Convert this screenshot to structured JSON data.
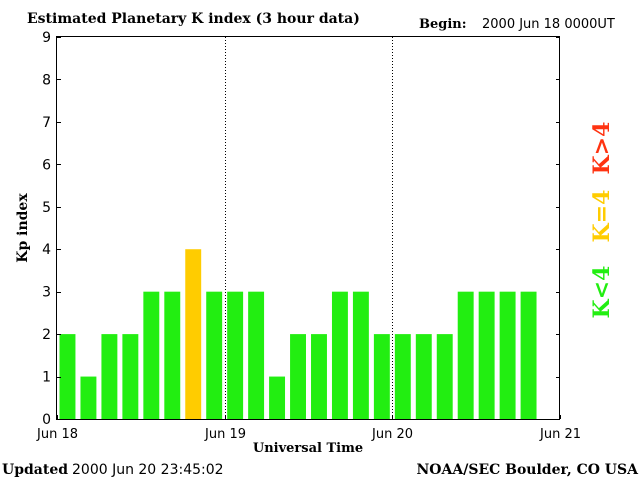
{
  "chart_data": {
    "type": "bar",
    "title": "Estimated Planetary K index (3 hour data)",
    "begin_label": "Begin:",
    "begin_value": "2000 Jun 18 0000UT",
    "xlabel": "Universal Time",
    "ylabel": "Kp index",
    "ylim": [
      0,
      9
    ],
    "yticks": [
      "0",
      "1",
      "2",
      "3",
      "4",
      "5",
      "6",
      "7",
      "8",
      "9"
    ],
    "x_range_hours": [
      0,
      72
    ],
    "bar_interval_hours": 3,
    "xticks": [
      {
        "label": "Jun 18",
        "hour": 0
      },
      {
        "label": "Jun 19",
        "hour": 24
      },
      {
        "label": "Jun 20",
        "hour": 48
      },
      {
        "label": "Jun 21",
        "hour": 72
      }
    ],
    "day_dividers_hours": [
      24,
      48
    ],
    "values": [
      2,
      1,
      2,
      2,
      3,
      3,
      4,
      3,
      3,
      3,
      1,
      2,
      2,
      3,
      3,
      2,
      2,
      2,
      2,
      3,
      3,
      3,
      3
    ],
    "legend": [
      {
        "text": "K<4",
        "color": "#22ee11"
      },
      {
        "text": "K=4",
        "color": "#ffcc00"
      },
      {
        "text": "K>4",
        "color": "#ff3311"
      }
    ],
    "updated_label": "Updated",
    "updated_value": "2000 Jun 20 23:45:02",
    "credit": "NOAA/SEC Boulder, CO USA"
  }
}
